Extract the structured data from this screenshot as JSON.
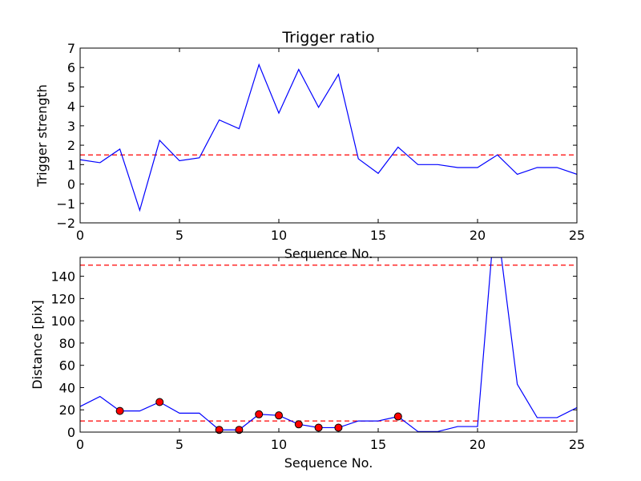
{
  "chart_data": [
    {
      "type": "line",
      "title": "Trigger ratio",
      "xlabel": "Sequence No.",
      "ylabel": "Trigger strength",
      "xlim": [
        0,
        25
      ],
      "ylim": [
        -2,
        7
      ],
      "xticks": [
        0,
        5,
        10,
        15,
        20,
        25
      ],
      "yticks": [
        -2,
        -1,
        0,
        1,
        2,
        3,
        4,
        5,
        6,
        7
      ],
      "ytick_labels": [
        "−2",
        "−1",
        "0",
        "1",
        "2",
        "3",
        "4",
        "5",
        "6",
        "7"
      ],
      "grid": false,
      "line_color": "#0000ff",
      "threshold_color": "#ff0000",
      "x": [
        0,
        1,
        2,
        3,
        4,
        5,
        6,
        7,
        8,
        9,
        10,
        11,
        12,
        13,
        14,
        15,
        16,
        17,
        18,
        19,
        20,
        21,
        22,
        23,
        24,
        25
      ],
      "y": [
        1.25,
        1.1,
        1.8,
        -1.35,
        2.25,
        1.2,
        1.35,
        3.3,
        2.85,
        6.15,
        3.65,
        5.9,
        3.95,
        5.65,
        1.3,
        0.55,
        1.9,
        1.0,
        1.0,
        0.85,
        0.85,
        1.5,
        0.5,
        0.85,
        0.85,
        0.5
      ],
      "thresholds": [
        1.5
      ]
    },
    {
      "type": "line",
      "title": "",
      "xlabel": "Sequence No.",
      "ylabel": "Distance [pix]",
      "xlim": [
        0,
        25
      ],
      "ylim": [
        0,
        157
      ],
      "xticks": [
        0,
        5,
        10,
        15,
        20,
        25
      ],
      "yticks": [
        0,
        20,
        40,
        60,
        80,
        100,
        120,
        140
      ],
      "ytick_labels": [
        "0",
        "20",
        "40",
        "60",
        "80",
        "100",
        "120",
        "140"
      ],
      "grid": false,
      "line_color": "#0000ff",
      "threshold_color": "#ff0000",
      "marker_color": "#ff0000",
      "x": [
        0,
        1,
        2,
        3,
        4,
        5,
        6,
        7,
        8,
        9,
        10,
        11,
        12,
        13,
        14,
        15,
        16,
        17,
        18,
        19,
        20,
        20.7,
        21.2,
        22,
        23,
        24,
        25
      ],
      "y": [
        23,
        32,
        19,
        19,
        27,
        17,
        17,
        2,
        2,
        16,
        15,
        7,
        4,
        4,
        10,
        10,
        14,
        0.5,
        0.5,
        5,
        5,
        157,
        157,
        43,
        13,
        13,
        22
      ],
      "highlight_points": [
        {
          "x": 2,
          "y": 19
        },
        {
          "x": 4,
          "y": 27
        },
        {
          "x": 7,
          "y": 2
        },
        {
          "x": 8,
          "y": 2
        },
        {
          "x": 9,
          "y": 16
        },
        {
          "x": 10,
          "y": 15
        },
        {
          "x": 11,
          "y": 7
        },
        {
          "x": 12,
          "y": 4
        },
        {
          "x": 13,
          "y": 4
        },
        {
          "x": 16,
          "y": 14
        }
      ],
      "thresholds": [
        10,
        150
      ]
    }
  ]
}
